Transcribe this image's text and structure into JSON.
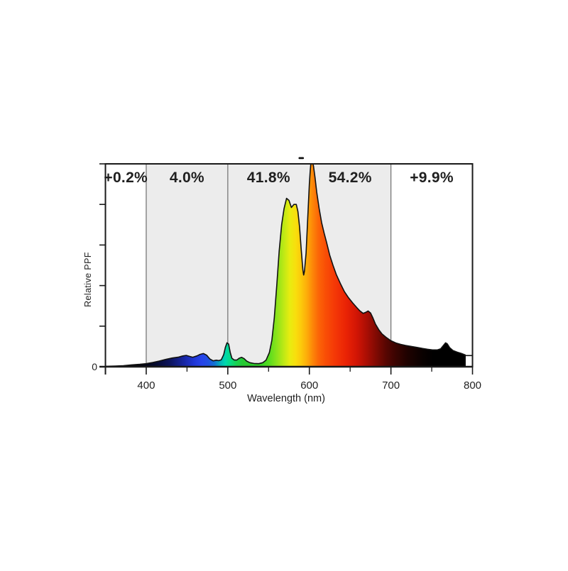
{
  "page": {
    "background": "#ffffff"
  },
  "chart_data": {
    "type": "area",
    "title": "",
    "xlabel": "Wavelength (nm)",
    "ylabel": "Relative PPF",
    "y_zero_label": "0",
    "x_range": [
      350,
      800
    ],
    "y_range": [
      0,
      1.0
    ],
    "grid": false,
    "x_major_ticks": [
      400,
      500,
      600,
      700,
      800
    ],
    "x_minor_ticks": [
      450,
      550,
      650,
      750
    ],
    "y_ticks": [
      0,
      0.2,
      0.4,
      0.6,
      0.8,
      1.0
    ],
    "bands": [
      {
        "label": "+0.2%",
        "range": [
          350,
          400
        ],
        "shaded": false
      },
      {
        "label": "4.0%",
        "range": [
          400,
          500
        ],
        "shaded": true
      },
      {
        "label": "41.8%",
        "range": [
          500,
          600
        ],
        "shaded": true
      },
      {
        "label": "54.2%",
        "range": [
          600,
          700
        ],
        "shaded": true
      },
      {
        "label": "+9.9%",
        "range": [
          700,
          800
        ],
        "shaded": false
      }
    ],
    "divider_lines_nm": [
      400,
      500,
      700
    ],
    "series": [
      {
        "name": "relative-ppf-spectrum",
        "points": [
          [
            350,
            0.002
          ],
          [
            362,
            0.003
          ],
          [
            372,
            0.005
          ],
          [
            382,
            0.009
          ],
          [
            392,
            0.012
          ],
          [
            400,
            0.015
          ],
          [
            408,
            0.021
          ],
          [
            416,
            0.028
          ],
          [
            424,
            0.036
          ],
          [
            432,
            0.043
          ],
          [
            439,
            0.047
          ],
          [
            445,
            0.053
          ],
          [
            449,
            0.056
          ],
          [
            453,
            0.051
          ],
          [
            457,
            0.047
          ],
          [
            462,
            0.053
          ],
          [
            466,
            0.061
          ],
          [
            470,
            0.065
          ],
          [
            474,
            0.057
          ],
          [
            478,
            0.038
          ],
          [
            482,
            0.029
          ],
          [
            486,
            0.032
          ],
          [
            489,
            0.03
          ],
          [
            492,
            0.034
          ],
          [
            495,
            0.06
          ],
          [
            497,
            0.095
          ],
          [
            499,
            0.118
          ],
          [
            501,
            0.112
          ],
          [
            503,
            0.07
          ],
          [
            505,
            0.042
          ],
          [
            508,
            0.033
          ],
          [
            511,
            0.033
          ],
          [
            514,
            0.042
          ],
          [
            517,
            0.046
          ],
          [
            520,
            0.04
          ],
          [
            523,
            0.028
          ],
          [
            527,
            0.02
          ],
          [
            532,
            0.016
          ],
          [
            538,
            0.015
          ],
          [
            543,
            0.02
          ],
          [
            547,
            0.033
          ],
          [
            551,
            0.07
          ],
          [
            554,
            0.13
          ],
          [
            557,
            0.24
          ],
          [
            560,
            0.4
          ],
          [
            563,
            0.57
          ],
          [
            566,
            0.7
          ],
          [
            569,
            0.78
          ],
          [
            572,
            0.83
          ],
          [
            575,
            0.82
          ],
          [
            578,
            0.785
          ],
          [
            581,
            0.8
          ],
          [
            584,
            0.8
          ],
          [
            586,
            0.765
          ],
          [
            588,
            0.69
          ],
          [
            590,
            0.58
          ],
          [
            592,
            0.48
          ],
          [
            593,
            0.452
          ],
          [
            594,
            0.47
          ],
          [
            596,
            0.56
          ],
          [
            598,
            0.73
          ],
          [
            600,
            0.9
          ],
          [
            601,
            0.965
          ],
          [
            602,
            1.01
          ],
          [
            604,
            1.01
          ],
          [
            605,
            0.99
          ],
          [
            607,
            0.93
          ],
          [
            609,
            0.86
          ],
          [
            612,
            0.78
          ],
          [
            615,
            0.71
          ],
          [
            618,
            0.66
          ],
          [
            621,
            0.615
          ],
          [
            625,
            0.55
          ],
          [
            629,
            0.5
          ],
          [
            633,
            0.455
          ],
          [
            638,
            0.41
          ],
          [
            643,
            0.37
          ],
          [
            648,
            0.34
          ],
          [
            653,
            0.315
          ],
          [
            658,
            0.292
          ],
          [
            662,
            0.275
          ],
          [
            666,
            0.263
          ],
          [
            669,
            0.268
          ],
          [
            672,
            0.275
          ],
          [
            675,
            0.265
          ],
          [
            678,
            0.24
          ],
          [
            681,
            0.21
          ],
          [
            685,
            0.183
          ],
          [
            689,
            0.162
          ],
          [
            694,
            0.145
          ],
          [
            700,
            0.128
          ],
          [
            706,
            0.117
          ],
          [
            712,
            0.11
          ],
          [
            718,
            0.105
          ],
          [
            725,
            0.1
          ],
          [
            732,
            0.095
          ],
          [
            739,
            0.09
          ],
          [
            745,
            0.086
          ],
          [
            751,
            0.083
          ],
          [
            757,
            0.083
          ],
          [
            761,
            0.088
          ],
          [
            764,
            0.103
          ],
          [
            767,
            0.118
          ],
          [
            769,
            0.113
          ],
          [
            772,
            0.094
          ],
          [
            776,
            0.08
          ],
          [
            781,
            0.072
          ],
          [
            786,
            0.066
          ],
          [
            791,
            0.058
          ]
        ]
      }
    ],
    "end_step": {
      "from_nm": 791,
      "to_nm": 800,
      "value": 0.055
    },
    "spectral_gradient": [
      [
        350,
        "#000000"
      ],
      [
        395,
        "#02030e"
      ],
      [
        412,
        "#060a30"
      ],
      [
        430,
        "#0d1560"
      ],
      [
        445,
        "#16249e"
      ],
      [
        458,
        "#1f35d4"
      ],
      [
        468,
        "#2744ea"
      ],
      [
        476,
        "#2150e2"
      ],
      [
        484,
        "#1173d2"
      ],
      [
        491,
        "#04b4b8"
      ],
      [
        497,
        "#00d8ae"
      ],
      [
        503,
        "#06db84"
      ],
      [
        510,
        "#16d254"
      ],
      [
        518,
        "#26c934"
      ],
      [
        528,
        "#2bcb2b"
      ],
      [
        540,
        "#32d426"
      ],
      [
        550,
        "#55dc1f"
      ],
      [
        560,
        "#8ce31a"
      ],
      [
        569,
        "#c0e915"
      ],
      [
        576,
        "#e8ec10"
      ],
      [
        583,
        "#f8df0d"
      ],
      [
        590,
        "#fcc90b"
      ],
      [
        597,
        "#fdac09"
      ],
      [
        604,
        "#fd8708"
      ],
      [
        611,
        "#fc6607"
      ],
      [
        620,
        "#f94e06"
      ],
      [
        632,
        "#f43706"
      ],
      [
        645,
        "#ea2305"
      ],
      [
        658,
        "#d21505"
      ],
      [
        670,
        "#ab0e04"
      ],
      [
        682,
        "#800a03"
      ],
      [
        694,
        "#570602"
      ],
      [
        706,
        "#3a0401"
      ],
      [
        720,
        "#1f0200"
      ],
      [
        738,
        "#0a0100"
      ],
      [
        752,
        "#000000"
      ],
      [
        800,
        "#000000"
      ]
    ],
    "colors": {
      "band_fill": "#ececec",
      "divider": "#787878",
      "axis": "#1a1a1a",
      "outline": "#111111",
      "text": "#1f1f1f"
    }
  }
}
